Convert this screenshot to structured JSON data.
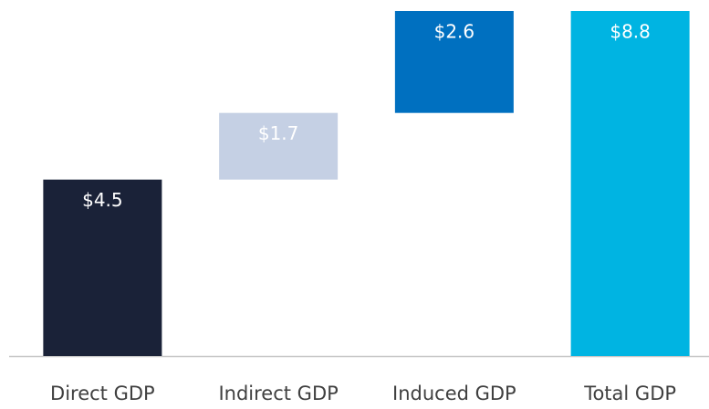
{
  "chart_data": {
    "type": "waterfall",
    "categories": [
      "Direct GDP",
      "Indirect GDP",
      "Induced GDP",
      "Total GDP"
    ],
    "values": [
      4.5,
      1.7,
      2.6,
      8.8
    ],
    "value_labels": [
      "$4.5",
      "$1.7",
      "$2.6",
      "$8.8"
    ],
    "colors": [
      "#1a2238",
      "#c5d0e4",
      "#0070c0",
      "#00b4e2"
    ]
  }
}
